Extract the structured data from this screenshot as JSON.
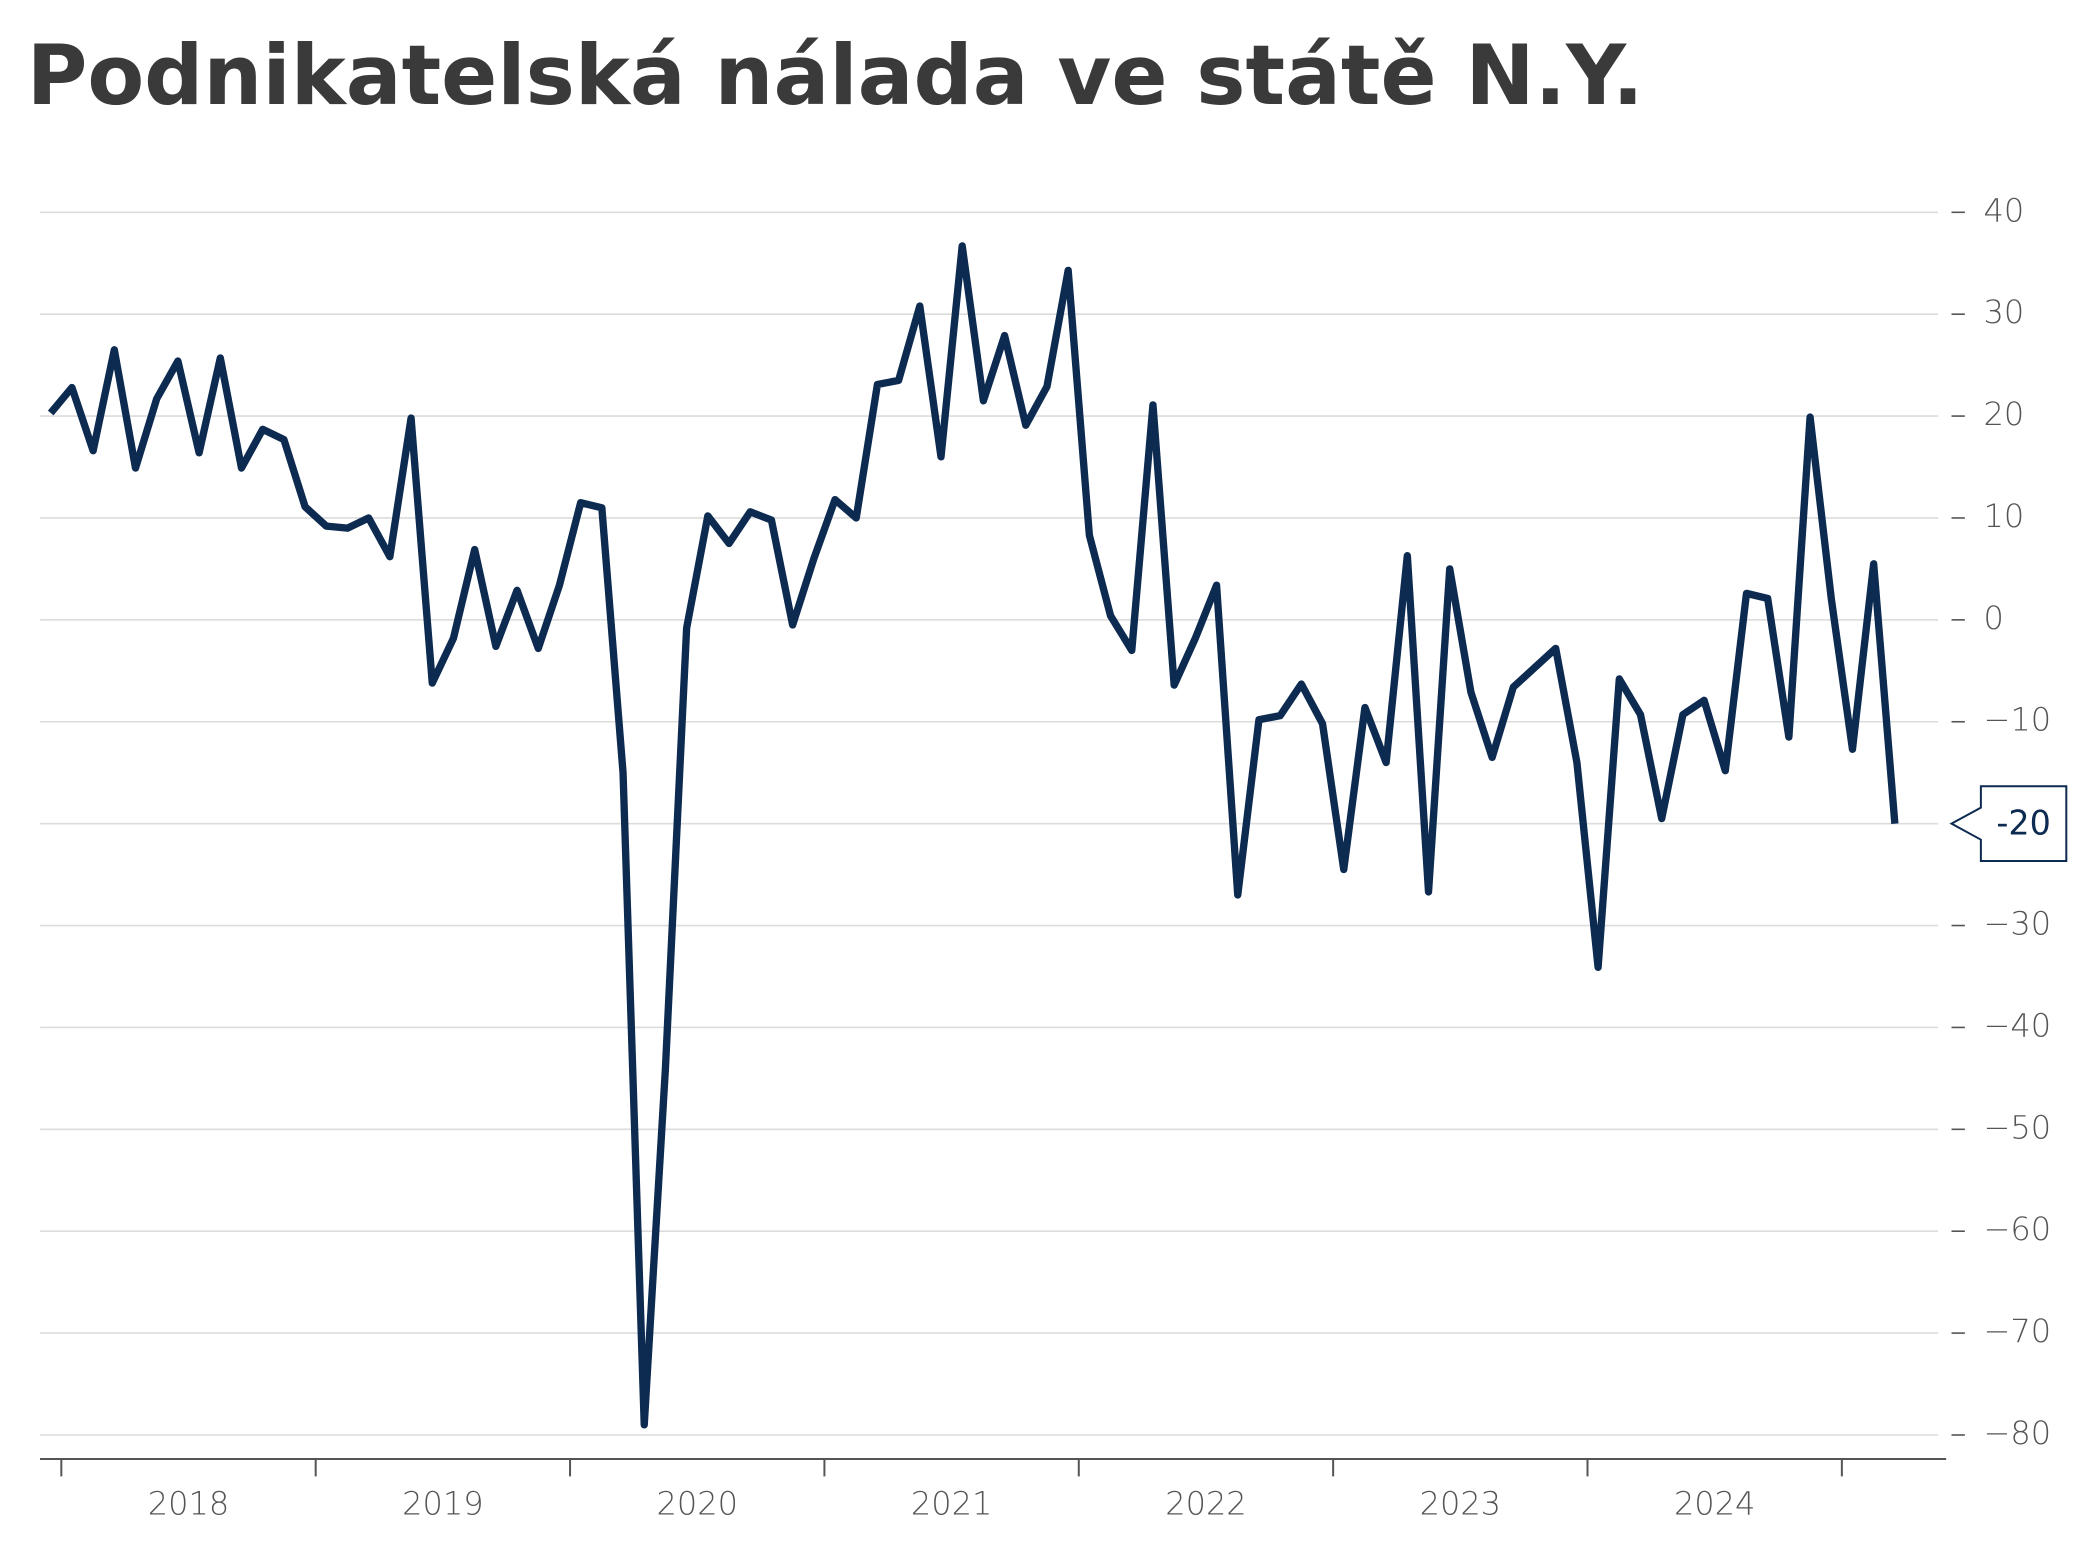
{
  "chart_data": {
    "type": "line",
    "title": "Podnikatelská nálada ve státě N.Y.",
    "year_labels": [
      "2018",
      "2019",
      "2020",
      "2021",
      "2022",
      "2023",
      "2024"
    ],
    "series": [
      {
        "name": null,
        "color": "#0d2a50",
        "values": [
          20.3,
          22.8,
          16.6,
          26.5,
          14.9,
          21.7,
          25.4,
          16.4,
          25.7,
          14.9,
          18.7,
          17.7,
          11.1,
          9.2,
          9.0,
          10.0,
          6.2,
          19.8,
          -6.2,
          -1.8,
          6.9,
          -2.6,
          2.9,
          -2.8,
          3.4,
          11.5,
          11.0,
          -15.0,
          -79,
          -44,
          -0.8,
          10.2,
          7.5,
          10.6,
          9.8,
          -0.5,
          6.0,
          11.8,
          10.0,
          23.1,
          23.5,
          30.8,
          16.0,
          36.7,
          21.5,
          27.9,
          19.1,
          22.9,
          34.3,
          8.3,
          0.4,
          -3.0,
          21.1,
          -6.4,
          -1.8,
          3.4,
          -27.0,
          -9.8,
          -9.4,
          -6.3,
          -10.2,
          -24.5,
          -8.6,
          -14.0,
          6.3,
          -26.7,
          5.0,
          -7.1,
          -13.5,
          -6.6,
          -4.7,
          -2.8,
          -14.0,
          -34.1,
          -5.8,
          -9.3,
          -19.5,
          -9.3,
          -7.9,
          -14.8,
          2.6,
          2.1,
          -11.5,
          19.9,
          2.1,
          -12.7,
          5.5,
          -20.0
        ]
      }
    ],
    "last_value_label": "-20",
    "ylim": [
      -80,
      40
    ],
    "yticks": [
      40,
      30,
      20,
      10,
      0,
      {
        "value": -10,
        "label": "−10"
      },
      {
        "value": -20,
        "label": "−20"
      },
      {
        "value": -30,
        "label": "−30"
      },
      {
        "value": -40,
        "label": "−40"
      },
      {
        "value": -50,
        "label": "−50"
      },
      {
        "value": -60,
        "label": "−60"
      },
      {
        "value": -70,
        "label": "−70"
      },
      {
        "value": -80,
        "label": "−80"
      }
    ],
    "grid": true
  }
}
